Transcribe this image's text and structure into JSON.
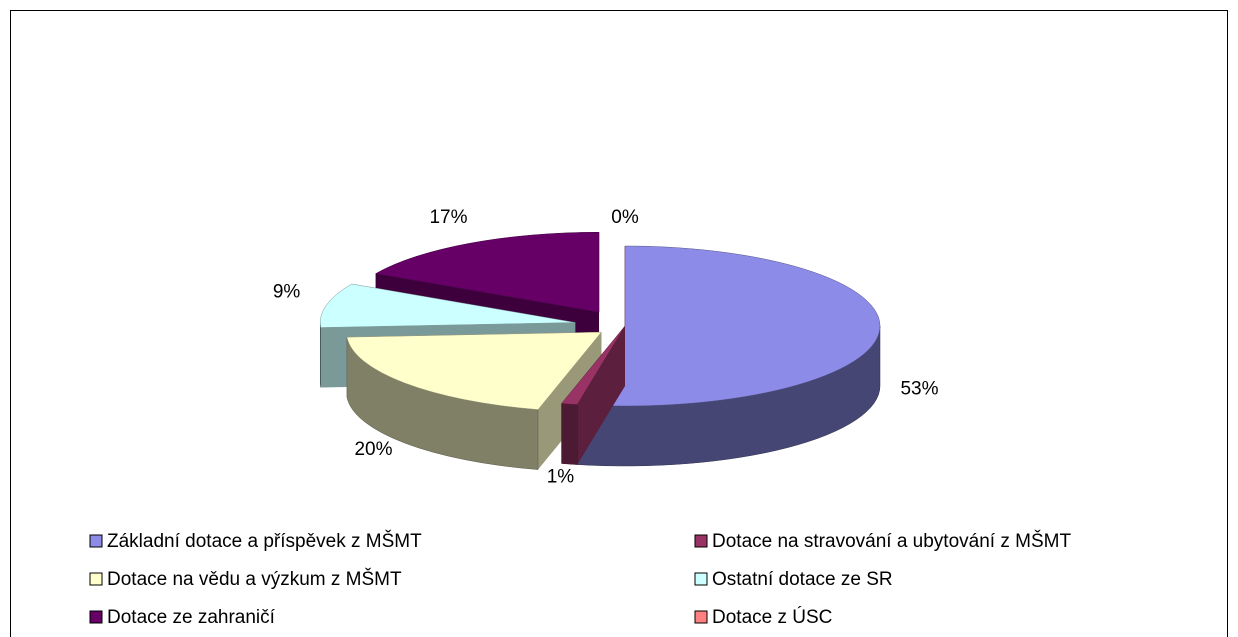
{
  "chart_data": {
    "type": "pie3d",
    "categories": [
      "Základní dotace a příspěvek z MŠMT",
      "Dotace na stravování a ubytování z MŠMT",
      "Dotace na vědu a výzkum z MŠMT",
      "Ostatní dotace ze SR",
      "Dotace ze zahraničí",
      "Dotace z ÚSC"
    ],
    "values": [
      53,
      1,
      20,
      9,
      17,
      0
    ],
    "value_labels": [
      "53%",
      "1%",
      "20%",
      "9%",
      "17%",
      "0%"
    ],
    "colors": [
      "#8c8ce8",
      "#993366",
      "#ffffcc",
      "#ccffff",
      "#660066",
      "#ff8080"
    ],
    "legend": "bottom"
  }
}
